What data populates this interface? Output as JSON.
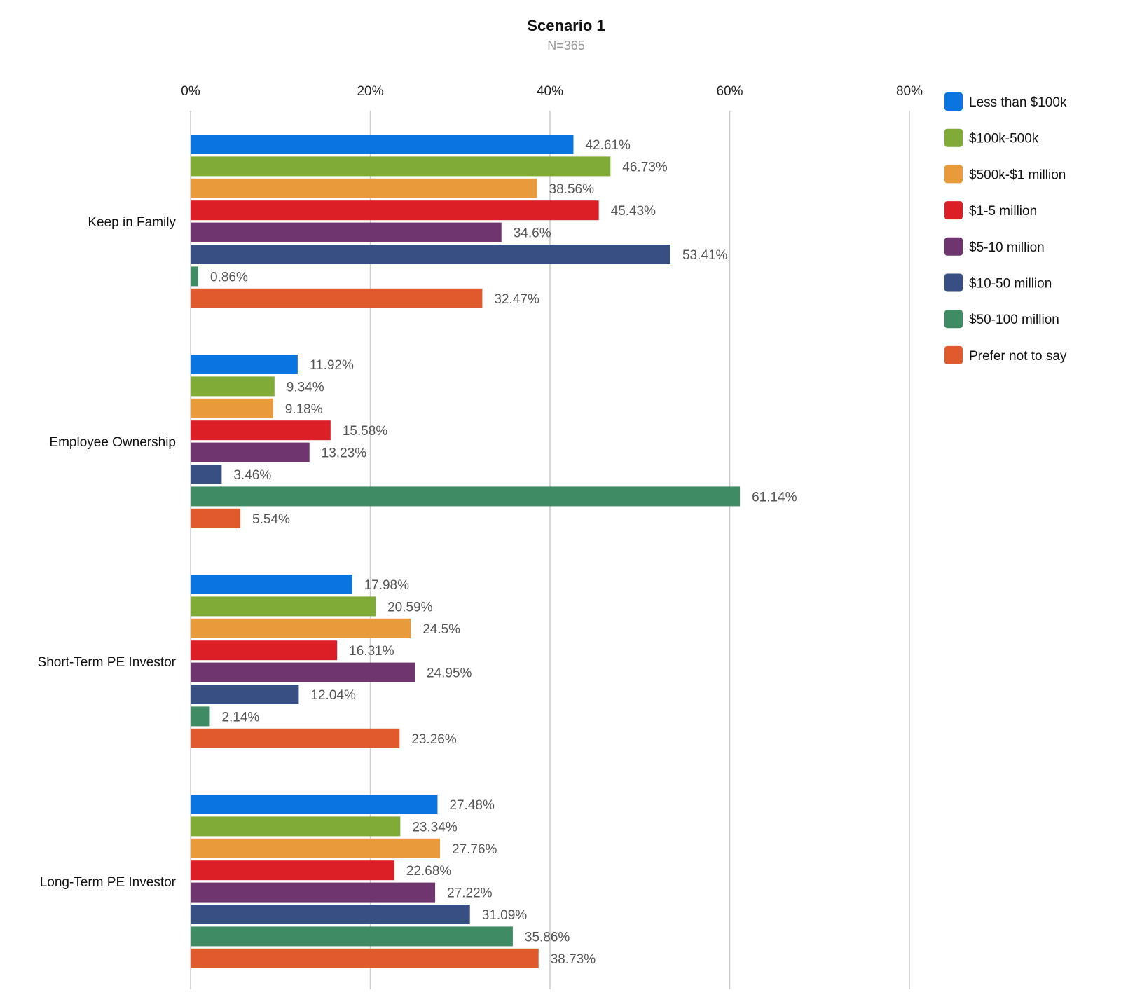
{
  "chart_data": {
    "type": "bar",
    "orientation": "horizontal",
    "title": "Scenario 1",
    "subtitle": "N=365",
    "xlim": [
      0,
      80
    ],
    "x_ticks": [
      "0%",
      "20%",
      "40%",
      "60%",
      "80%"
    ],
    "grid": true,
    "legend_position": "right",
    "categories": [
      "Keep in Family",
      "Employee Ownership",
      "Short-Term PE Investor",
      "Long-Term PE Investor"
    ],
    "series": [
      {
        "name": "Less than $100k",
        "color": "#0a74e0",
        "values": [
          42.61,
          11.92,
          17.98,
          27.48
        ],
        "labels": [
          "42.61%",
          "11.92%",
          "17.98%",
          "27.48%"
        ]
      },
      {
        "name": "$100k-500k",
        "color": "#80ab37",
        "values": [
          46.73,
          9.34,
          20.59,
          23.34
        ],
        "labels": [
          "46.73%",
          "9.34%",
          "20.59%",
          "23.34%"
        ]
      },
      {
        "name": "$500k-$1 million",
        "color": "#e99a3a",
        "values": [
          38.56,
          9.18,
          24.5,
          27.76
        ],
        "labels": [
          "38.56%",
          "9.18%",
          "24.5%",
          "27.76%"
        ]
      },
      {
        "name": "$1-5 million",
        "color": "#dc1e26",
        "values": [
          45.43,
          15.58,
          16.31,
          22.68
        ],
        "labels": [
          "45.43%",
          "15.58%",
          "16.31%",
          "22.68%"
        ]
      },
      {
        "name": "$5-10 million",
        "color": "#6e356e",
        "values": [
          34.6,
          13.23,
          24.95,
          27.22
        ],
        "labels": [
          "34.6%",
          "13.23%",
          "24.95%",
          "27.22%"
        ]
      },
      {
        "name": "$10-50 million",
        "color": "#374f82",
        "values": [
          53.41,
          3.46,
          12.04,
          31.09
        ],
        "labels": [
          "53.41%",
          "3.46%",
          "12.04%",
          "31.09%"
        ]
      },
      {
        "name": "$50-100 million",
        "color": "#3f8b63",
        "values": [
          0.86,
          61.14,
          2.14,
          35.86
        ],
        "labels": [
          "0.86%",
          "61.14%",
          "2.14%",
          "35.86%"
        ]
      },
      {
        "name": "Prefer not to say",
        "color": "#e05a2e",
        "values": [
          32.47,
          5.54,
          23.26,
          38.73
        ],
        "labels": [
          "32.47%",
          "5.54%",
          "23.26%",
          "38.73%"
        ]
      }
    ]
  }
}
